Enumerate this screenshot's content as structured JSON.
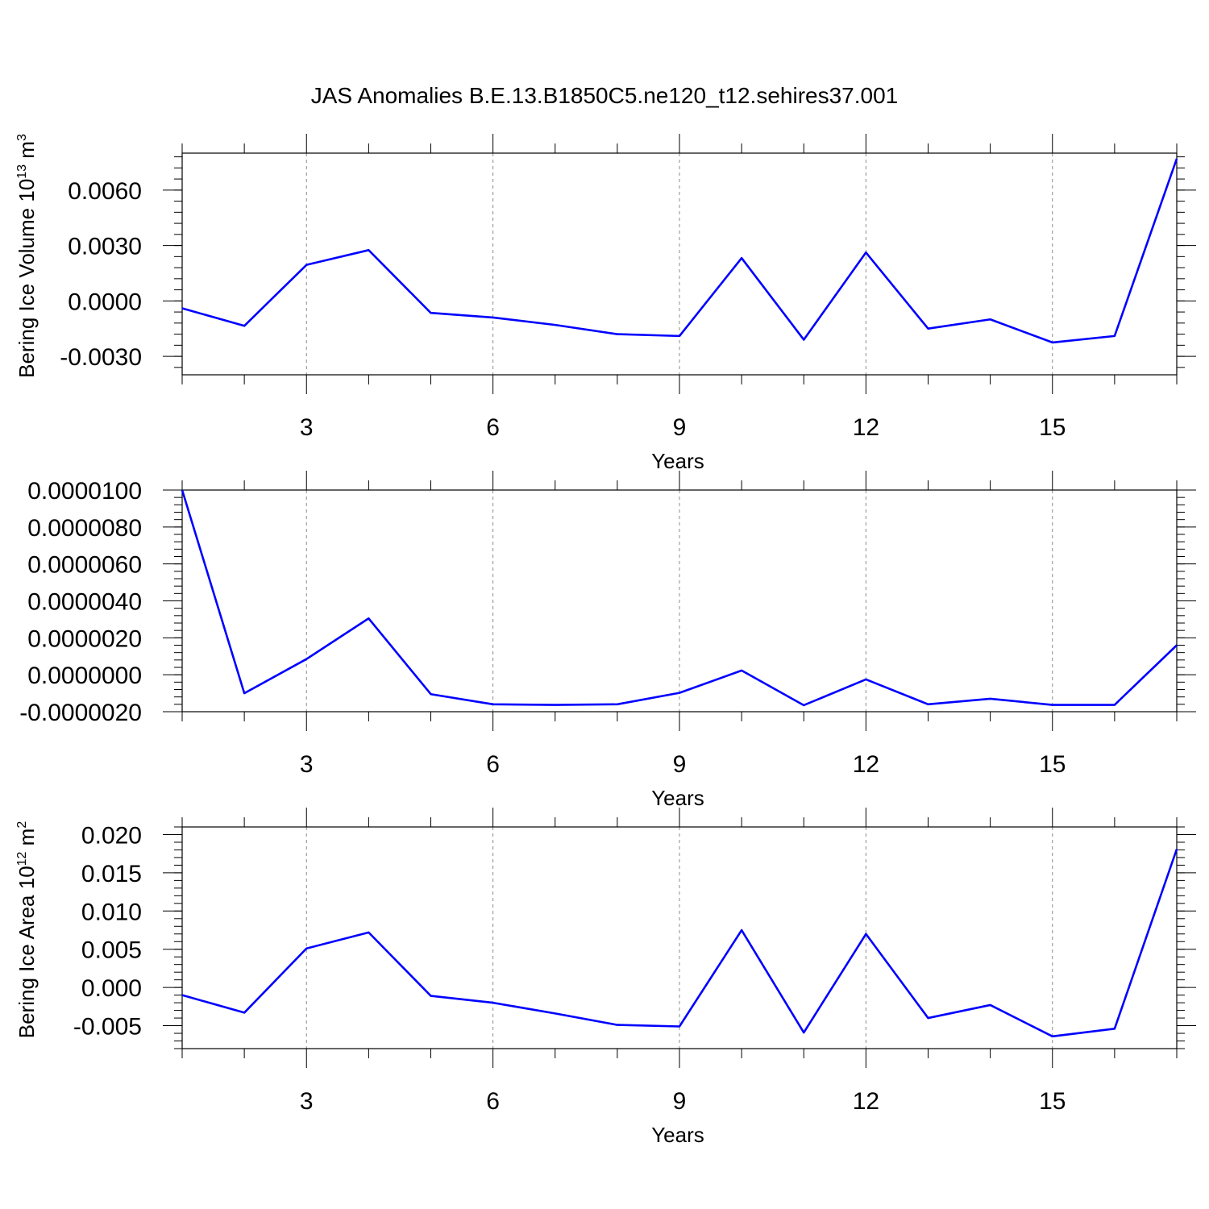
{
  "title": "JAS Anomalies B.E.13.B1850C5.ne120_t12.sehires37.001",
  "line_color": "#0000ff",
  "chart_data": [
    {
      "type": "line",
      "title": "JAS Anomalies B.E.13.B1850C5.ne120_t12.sehires37.001",
      "xlabel": "Years",
      "ylabel": {
        "base": "Bering Ice Volume 10",
        "exp1": "13",
        "unit": " m",
        "exp2": "3"
      },
      "x": [
        1,
        2,
        3,
        4,
        5,
        6,
        7,
        8,
        9,
        10,
        11,
        12,
        13,
        14,
        15,
        16,
        17
      ],
      "xlim": [
        1,
        17
      ],
      "xticks": [
        3,
        6,
        9,
        12,
        15
      ],
      "xtick_labels": [
        "3",
        "6",
        "9",
        "12",
        "15"
      ],
      "ylim": [
        -0.004,
        0.008
      ],
      "yticks": [
        -0.003,
        0.0,
        0.003,
        0.006
      ],
      "ytick_labels": [
        "-0.0030",
        "0.0000",
        "0.0030",
        "0.0060"
      ],
      "grid": "vertical dashed at major x ticks",
      "series": [
        {
          "values": [
            -0.0004,
            -0.00135,
            0.00195,
            0.00275,
            -0.00065,
            -0.0009,
            -0.0013,
            -0.0018,
            -0.0019,
            0.00232,
            -0.0021,
            0.00262,
            -0.0015,
            -0.001,
            -0.00225,
            -0.0019,
            0.0077
          ]
        }
      ]
    },
    {
      "type": "line",
      "xlabel": "Years",
      "ylabel": null,
      "x": [
        1,
        2,
        3,
        4,
        5,
        6,
        7,
        8,
        9,
        10,
        11,
        12,
        13,
        14,
        15,
        16,
        17
      ],
      "xlim": [
        1,
        17
      ],
      "xticks": [
        3,
        6,
        9,
        12,
        15
      ],
      "xtick_labels": [
        "3",
        "6",
        "9",
        "12",
        "15"
      ],
      "ylim": [
        -2e-06,
        1e-05
      ],
      "yticks": [
        -2e-06,
        0.0,
        2e-06,
        4e-06,
        6e-06,
        8e-06,
        1e-05
      ],
      "ytick_labels": [
        "-0.0000020",
        "0.0000000",
        "0.0000020",
        "0.0000040",
        "0.0000060",
        "0.0000080",
        "0.0000100"
      ],
      "grid": "vertical dashed at major x ticks",
      "series": [
        {
          "values": [
            1e-05,
            -1e-06,
            8.5e-07,
            3.05e-06,
            -1.05e-06,
            -1.6e-06,
            -1.63e-06,
            -1.6e-06,
            -9.8e-07,
            2.3e-07,
            -1.65e-06,
            -2.5e-07,
            -1.6e-06,
            -1.3e-06,
            -1.63e-06,
            -1.63e-06,
            1.6e-06
          ]
        }
      ]
    },
    {
      "type": "line",
      "xlabel": "Years",
      "ylabel": {
        "base": "Bering Ice Area 10",
        "exp1": "12",
        "unit": " m",
        "exp2": "2"
      },
      "x": [
        1,
        2,
        3,
        4,
        5,
        6,
        7,
        8,
        9,
        10,
        11,
        12,
        13,
        14,
        15,
        16,
        17
      ],
      "xlim": [
        1,
        17
      ],
      "xticks": [
        3,
        6,
        9,
        12,
        15
      ],
      "xtick_labels": [
        "3",
        "6",
        "9",
        "12",
        "15"
      ],
      "ylim": [
        -0.008,
        0.021
      ],
      "yticks": [
        -0.005,
        0.0,
        0.005,
        0.01,
        0.015,
        0.02
      ],
      "ytick_labels": [
        "-0.005",
        "0.000",
        "0.005",
        "0.010",
        "0.015",
        "0.020"
      ],
      "grid": "vertical dashed at major x ticks",
      "series": [
        {
          "values": [
            -0.001,
            -0.0033,
            0.0051,
            0.0072,
            -0.0011,
            -0.002,
            -0.0034,
            -0.0049,
            -0.0051,
            0.0075,
            -0.0059,
            0.007,
            -0.004,
            -0.0023,
            -0.0064,
            -0.0054,
            0.0181
          ]
        }
      ]
    }
  ]
}
